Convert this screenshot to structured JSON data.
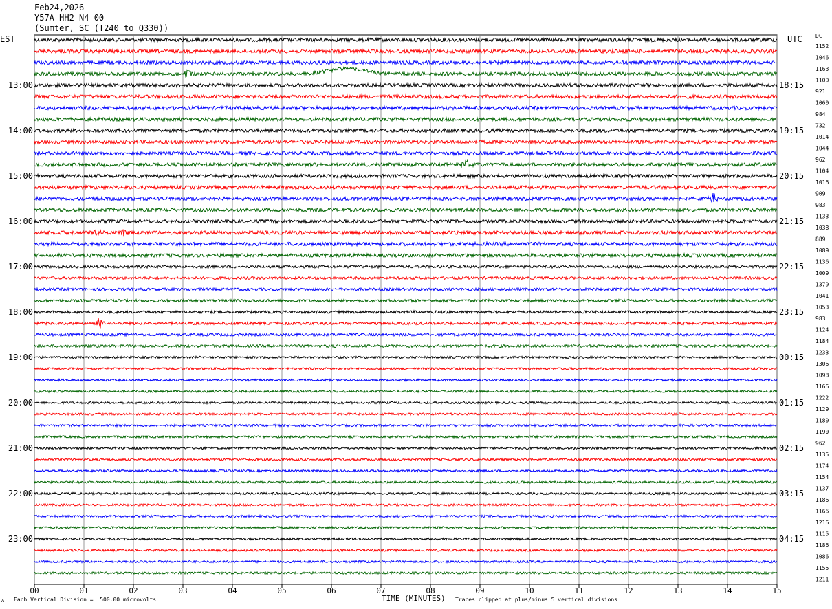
{
  "header": {
    "date": "Feb24,2026",
    "station": "Y57A HH2 N4 00",
    "location": "(Sumter, SC (T240 to Q330))"
  },
  "left_zone_label": "EST",
  "right_zone_label": "UTC",
  "dc_label": "DC",
  "footer": {
    "scale_note": "Each Vertical Division =  500.00 microvolts",
    "x_axis_title": "TIME (MINUTES)",
    "clip_note": "Traces clipped at plus/minus 5 vertical divisions",
    "corner_mark": "A"
  },
  "chart_data": {
    "type": "line",
    "title": "Feb24,2026",
    "xlabel": "TIME (MINUTES)",
    "ylabel": "",
    "xlim": [
      0,
      15
    ],
    "x_ticks": [
      "00",
      "01",
      "02",
      "03",
      "04",
      "05",
      "06",
      "07",
      "08",
      "09",
      "10",
      "11",
      "12",
      "13",
      "14",
      "15"
    ],
    "grid": true,
    "trace_colors": [
      "#000000",
      "#ff0000",
      "#0000ff",
      "#006400"
    ],
    "traces_per_hour": 4,
    "left_hour_labels": [
      "",
      "13:00",
      "14:00",
      "15:00",
      "16:00",
      "17:00",
      "18:00",
      "19:00",
      "20:00",
      "21:00",
      "22:00",
      "23:00"
    ],
    "right_hour_labels": [
      "",
      "18:15",
      "19:15",
      "20:15",
      "21:15",
      "22:15",
      "23:15",
      "00:15",
      "01:15",
      "02:15",
      "03:15",
      "04:15"
    ],
    "dc_offsets": [
      1152,
      1046,
      1163,
      1100,
      921,
      1060,
      984,
      732,
      1014,
      1044,
      962,
      1104,
      1016,
      909,
      983,
      1133,
      1038,
      889,
      1089,
      1136,
      1009,
      1379,
      1041,
      1053,
      983,
      1124,
      1184,
      1233,
      1306,
      1098,
      1166,
      1222,
      1129,
      1180,
      1190,
      962,
      1135,
      1174,
      1154,
      1137,
      1186,
      1166,
      1216,
      1115,
      1186,
      1086,
      1155,
      1211
    ],
    "events": [
      {
        "trace": 3,
        "minute": 6.3,
        "type": "swell"
      },
      {
        "trace": 3,
        "minute": 3.1,
        "type": "burst"
      },
      {
        "trace": 17,
        "minute": 1.3,
        "type": "burst"
      },
      {
        "trace": 17,
        "minute": 1.8,
        "type": "burst"
      },
      {
        "trace": 11,
        "minute": 8.7,
        "type": "burst"
      },
      {
        "trace": 25,
        "minute": 1.3,
        "type": "burst"
      },
      {
        "trace": 14,
        "minute": 13.7,
        "type": "burst"
      }
    ]
  }
}
